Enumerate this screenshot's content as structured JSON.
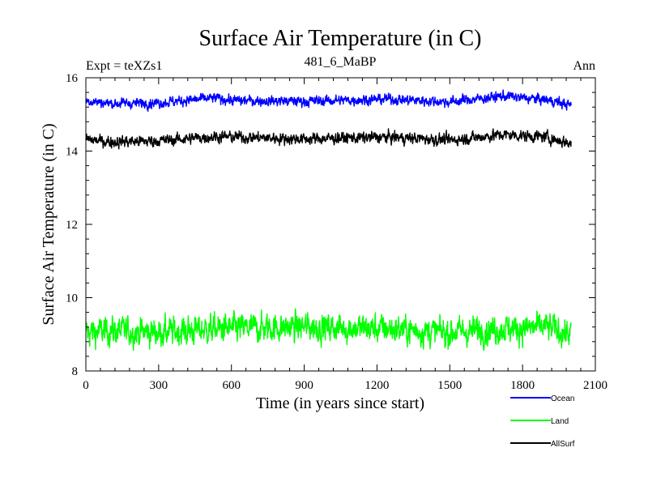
{
  "chart_data": {
    "type": "line",
    "title": "Surface Air Temperature (in C)",
    "subtitle": "481_6_MaBP",
    "left_label": "Expt = teXZs1",
    "right_label": "Ann",
    "xlabel": "Time (in years since start)",
    "ylabel": "Surface Air Temperature (in C)",
    "xlim": [
      0,
      2100
    ],
    "ylim": [
      8,
      16
    ],
    "x_ticks": [
      0,
      300,
      600,
      900,
      1200,
      1500,
      1800,
      2100
    ],
    "y_ticks": [
      8,
      10,
      12,
      14,
      16
    ],
    "x_tick_labels": [
      "0",
      "300",
      "600",
      "900",
      "1200",
      "1500",
      "1800",
      "2100"
    ],
    "y_tick_labels": [
      "8",
      "10",
      "12",
      "14",
      "16"
    ],
    "x_range": [
      0,
      2000
    ],
    "legend_position": "bottom-right, outside plot",
    "series": [
      {
        "name": "Ocean",
        "color": "#0000ff",
        "mean": 15.35,
        "noise": 0.08,
        "anchors": [
          [
            0,
            15.38
          ],
          [
            100,
            15.3
          ],
          [
            300,
            15.32
          ],
          [
            540,
            15.45
          ],
          [
            600,
            15.38
          ],
          [
            900,
            15.36
          ],
          [
            1250,
            15.42
          ],
          [
            1500,
            15.34
          ],
          [
            1720,
            15.5
          ],
          [
            1900,
            15.4
          ],
          [
            2000,
            15.25
          ]
        ]
      },
      {
        "name": "Land",
        "color": "#00ff00",
        "mean": 9.1,
        "noise": 0.22,
        "anchors": [
          [
            0,
            9.05
          ],
          [
            100,
            9.1
          ],
          [
            300,
            9.05
          ],
          [
            540,
            9.15
          ],
          [
            900,
            9.2
          ],
          [
            1250,
            9.15
          ],
          [
            1500,
            9.05
          ],
          [
            1720,
            9.15
          ],
          [
            1900,
            9.2
          ],
          [
            2000,
            9.0
          ]
        ]
      },
      {
        "name": "AllSurf",
        "color": "#000000",
        "mean": 14.3,
        "noise": 0.09,
        "anchors": [
          [
            0,
            14.32
          ],
          [
            100,
            14.25
          ],
          [
            300,
            14.28
          ],
          [
            540,
            14.4
          ],
          [
            900,
            14.33
          ],
          [
            1250,
            14.38
          ],
          [
            1500,
            14.3
          ],
          [
            1720,
            14.45
          ],
          [
            1900,
            14.38
          ],
          [
            2000,
            14.2
          ]
        ]
      }
    ]
  }
}
